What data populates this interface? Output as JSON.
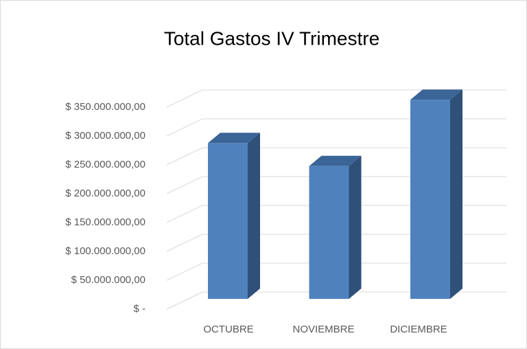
{
  "chart_data": {
    "type": "bar3d",
    "title": "Total Gastos IV Trimestre",
    "categories": [
      "OCTUBRE",
      "NOVIEMBRE",
      "DICIEMBRE"
    ],
    "values": [
      270000000,
      230000000,
      345000000
    ],
    "color": "#4f81bd",
    "ylim": [
      0,
      400000000
    ],
    "yticks": [
      {
        "value": 0,
        "label": "$ -"
      },
      {
        "value": 50000000,
        "label": "$ 50.000.000,00"
      },
      {
        "value": 100000000,
        "label": "$ 100.000.000,00"
      },
      {
        "value": 150000000,
        "label": "$ 150.000.000,00"
      },
      {
        "value": 200000000,
        "label": "$ 200.000.000,00"
      },
      {
        "value": 250000000,
        "label": "$ 250.000.000,00"
      },
      {
        "value": 300000000,
        "label": "$ 300.000.000,00"
      },
      {
        "value": 350000000,
        "label": "$ 350.000.000,00"
      }
    ],
    "grid": true
  }
}
